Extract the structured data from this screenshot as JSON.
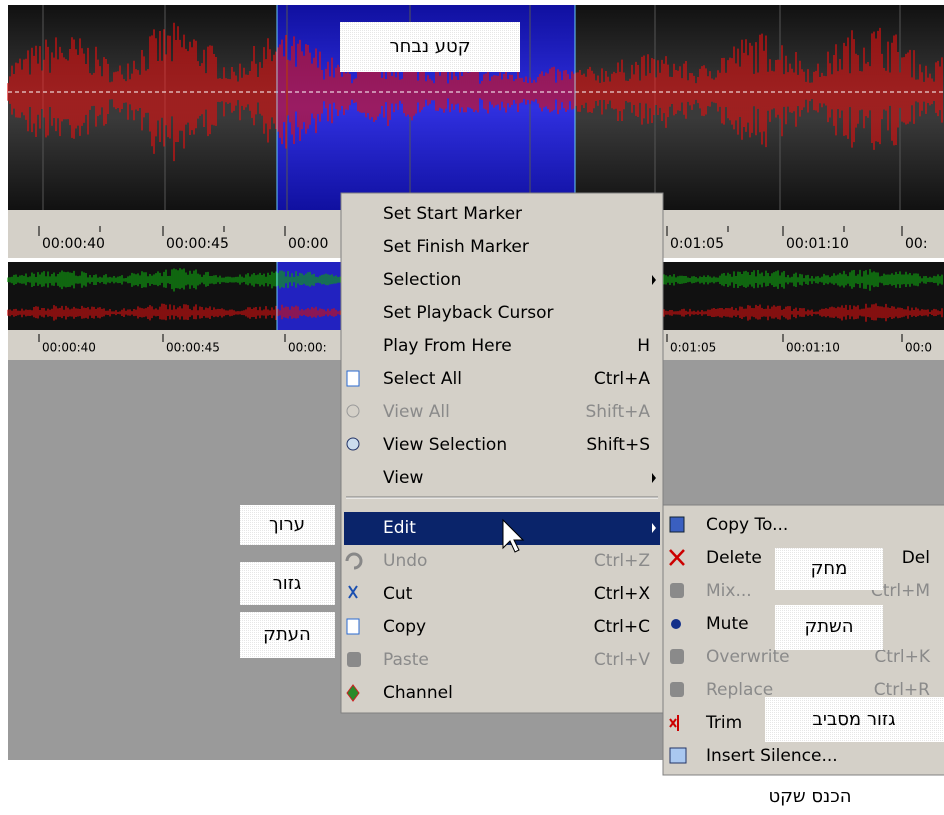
{
  "annotations": {
    "selected": "קטע נבחר",
    "edit": "ערוך",
    "cut": "גזור",
    "copy": "העתק",
    "delete": "מחק",
    "mute": "השתק",
    "trim": "גזור מסביב",
    "insert_silence": "הכנס שקט"
  },
  "ruler_top": [
    "00:00:40",
    "00:00:45",
    "00:00",
    "0:01:05",
    "00:01:10",
    "00:"
  ],
  "ruler_bottom": [
    "00:00:40",
    "00:00:45",
    "00:00:",
    "0:01:05",
    "00:01:10",
    "00:0"
  ],
  "menu": {
    "groups": [
      [
        {
          "label": "Set Start Marker"
        },
        {
          "label": "Set Finish Marker"
        },
        {
          "label": "Selection",
          "submenu": true
        },
        {
          "label": "Set Playback Cursor"
        },
        {
          "label": "Play From Here",
          "shortcut": "H"
        },
        {
          "label": "Select All",
          "shortcut": "Ctrl+A"
        },
        {
          "label": "View All",
          "shortcut": "Shift+A",
          "disabled": true
        },
        {
          "label": "View Selection",
          "shortcut": "Shift+S"
        },
        {
          "label": "View",
          "submenu": true
        }
      ],
      [
        {
          "label": "Edit",
          "submenu": true,
          "highlighted": true
        },
        {
          "label": "Undo",
          "shortcut": "Ctrl+Z",
          "disabled": true
        },
        {
          "label": "Cut",
          "shortcut": "Ctrl+X"
        },
        {
          "label": "Copy",
          "shortcut": "Ctrl+C"
        },
        {
          "label": "Paste",
          "shortcut": "Ctrl+V",
          "disabled": true
        },
        {
          "label": "Channel"
        }
      ]
    ]
  },
  "submenu": [
    {
      "label": "Copy To..."
    },
    {
      "label": "Delete",
      "shortcut": "Del"
    },
    {
      "label": "Mix...",
      "shortcut": "Ctrl+M",
      "disabled": true
    },
    {
      "label": "Mute"
    },
    {
      "label": "Overwrite",
      "shortcut": "Ctrl+K",
      "disabled": true
    },
    {
      "label": "Replace",
      "shortcut": "Ctrl+R",
      "disabled": true
    },
    {
      "label": "Trim"
    },
    {
      "label": "Insert Silence..."
    }
  ]
}
